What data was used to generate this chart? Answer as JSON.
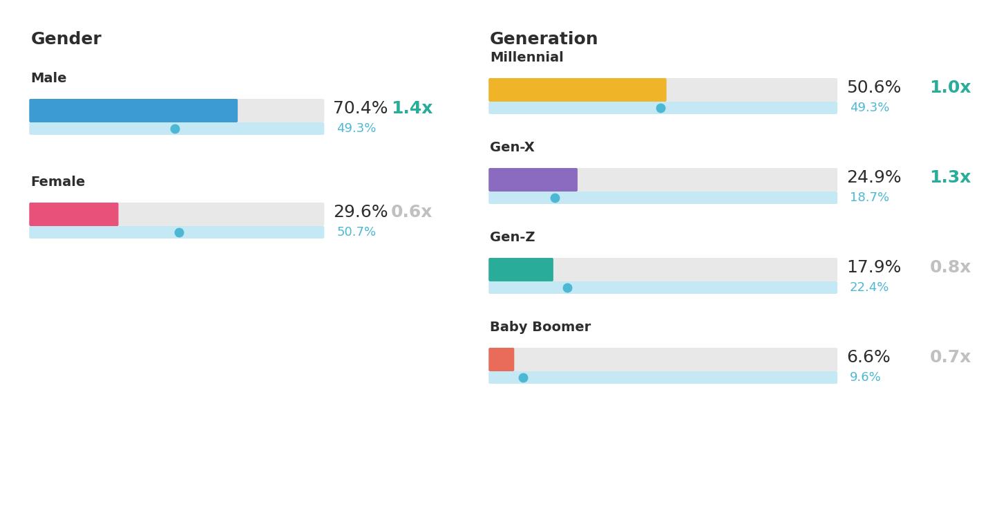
{
  "panel_left": {
    "title": "Gender",
    "items": [
      {
        "label": "Male",
        "bar_color": "#3d9bd4",
        "bar_value": 70.4,
        "pct_text": "70.4%",
        "ref_pct": 49.3,
        "ref_text": "49.3%",
        "index_text": "1.4x",
        "index_highlight": true
      },
      {
        "label": "Female",
        "bar_color": "#e8527a",
        "bar_value": 29.6,
        "pct_text": "29.6%",
        "ref_pct": 50.7,
        "ref_text": "50.7%",
        "index_text": "0.6x",
        "index_highlight": false
      }
    ]
  },
  "panel_right": {
    "title": "Generation",
    "items": [
      {
        "label": "Millennial",
        "bar_color": "#f0b429",
        "bar_value": 50.6,
        "pct_text": "50.6%",
        "ref_pct": 49.3,
        "ref_text": "49.3%",
        "index_text": "1.0x",
        "index_highlight": true
      },
      {
        "label": "Gen-X",
        "bar_color": "#8a6bbf",
        "bar_value": 24.9,
        "pct_text": "24.9%",
        "ref_pct": 18.7,
        "ref_text": "18.7%",
        "index_text": "1.3x",
        "index_highlight": true
      },
      {
        "label": "Gen-Z",
        "bar_color": "#2aac9a",
        "bar_value": 17.9,
        "pct_text": "17.9%",
        "ref_pct": 22.4,
        "ref_text": "22.4%",
        "index_text": "0.8x",
        "index_highlight": false
      },
      {
        "label": "Baby Boomer",
        "bar_color": "#e96b5a",
        "bar_value": 6.6,
        "pct_text": "6.6%",
        "ref_pct": 9.6,
        "ref_text": "9.6%",
        "index_text": "0.7x",
        "index_highlight": false
      }
    ]
  },
  "bg_color": "#ffffff",
  "divider_color": "#e8eaf0",
  "bar_bg_color": "#e8e8e8",
  "ref_bar_color": "#c5e8f5",
  "ref_dot_color": "#4db8d4",
  "highlight_color": "#2aac9a",
  "muted_color": "#c0c0c0",
  "text_dark": "#2d2d2d",
  "title_fontsize": 18,
  "label_fontsize": 14,
  "pct_fontsize": 18,
  "ref_pct_fontsize": 13,
  "index_fontsize": 18,
  "bar_max": 100
}
